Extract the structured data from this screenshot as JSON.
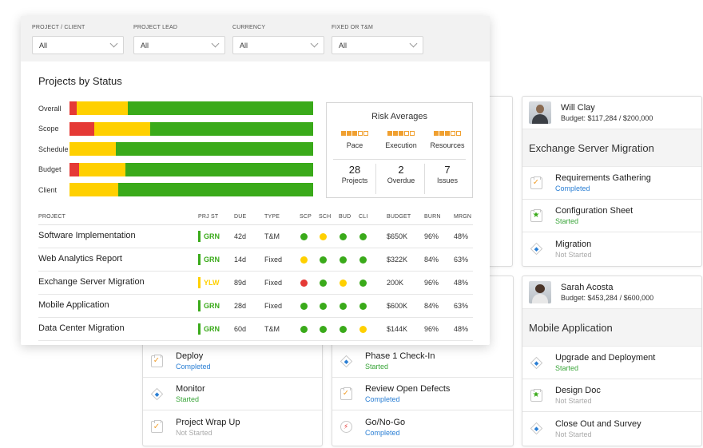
{
  "colors": {
    "red": "#e53935",
    "yellow": "#ffd000",
    "green": "#3aaa1a",
    "risk_orange": "#f0a030",
    "completed_blue": "#2b7fd4"
  },
  "filters": [
    {
      "label": "PROJECT / CLIENT",
      "value": "All"
    },
    {
      "label": "PROJECT LEAD",
      "value": "All"
    },
    {
      "label": "CURRENCY",
      "value": "All"
    },
    {
      "label": "FIXED OR T&M",
      "value": "All"
    }
  ],
  "status_chart": {
    "title": "Projects by Status",
    "rows": [
      {
        "label": "Overall",
        "red": 3,
        "yellow": 21,
        "green": 76
      },
      {
        "label": "Scope",
        "red": 10,
        "yellow": 23,
        "green": 67
      },
      {
        "label": "Schedule",
        "red": 0,
        "yellow": 19,
        "green": 81
      },
      {
        "label": "Budget",
        "red": 4,
        "yellow": 19,
        "green": 77
      },
      {
        "label": "Client",
        "red": 0,
        "yellow": 20,
        "green": 80
      }
    ]
  },
  "risk": {
    "title": "Risk Averages",
    "metrics": [
      {
        "label": "Pace",
        "filled": 3,
        "total": 5
      },
      {
        "label": "Execution",
        "filled": 3,
        "total": 5
      },
      {
        "label": "Resources",
        "filled": 3,
        "total": 5
      }
    ],
    "stats": [
      {
        "value": "28",
        "label": "Projects"
      },
      {
        "value": "2",
        "label": "Overdue"
      },
      {
        "value": "7",
        "label": "Issues"
      }
    ]
  },
  "table": {
    "headers": [
      "PROJECT",
      "PRJ ST",
      "DUE",
      "TYPE",
      "SCP",
      "SCH",
      "BUD",
      "CLI",
      "BUDGET",
      "BURN",
      "MRGN"
    ],
    "rows": [
      {
        "project": "Software Implementation",
        "status": "GRN",
        "due": "42d",
        "type": "T&M",
        "scp": "green",
        "sch": "yellow",
        "bud": "green",
        "cli": "green",
        "budget": "$650K",
        "burn": "96%",
        "margin": "48%"
      },
      {
        "project": "Web Analytics Report",
        "status": "GRN",
        "due": "14d",
        "type": "Fixed",
        "scp": "yellow",
        "sch": "green",
        "bud": "green",
        "cli": "green",
        "budget": "$322K",
        "burn": "84%",
        "margin": "63%"
      },
      {
        "project": "Exchange Server Migration",
        "status": "YLW",
        "due": "89d",
        "type": "Fixed",
        "scp": "red",
        "sch": "green",
        "bud": "yellow",
        "cli": "green",
        "budget": "200K",
        "burn": "96%",
        "margin": "48%"
      },
      {
        "project": "Mobile Application",
        "status": "GRN",
        "due": "28d",
        "type": "Fixed",
        "scp": "green",
        "sch": "green",
        "bud": "green",
        "cli": "green",
        "budget": "$600K",
        "burn": "84%",
        "margin": "63%"
      },
      {
        "project": "Data Center Migration",
        "status": "GRN",
        "due": "60d",
        "type": "T&M",
        "scp": "green",
        "sch": "green",
        "bud": "green",
        "cli": "yellow",
        "budget": "$144K",
        "burn": "96%",
        "margin": "48%"
      }
    ]
  },
  "cards": {
    "exchange": {
      "person": "Will Clay",
      "budget": "Budget: $117,284 / $200,000",
      "title": "Exchange Server Migration",
      "tasks": [
        {
          "name": "Requirements Gathering",
          "status": "Completed"
        },
        {
          "name": "Configuration Sheet",
          "status": "Started"
        },
        {
          "name": "Migration",
          "status": "Not Started"
        }
      ]
    },
    "mobile": {
      "person": "Sarah Acosta",
      "budget": "Budget: $453,284 / $600,000",
      "title": "Mobile Application",
      "tasks": [
        {
          "name": "Upgrade and Deployment",
          "status": "Started"
        },
        {
          "name": "Design Doc",
          "status": "Not Started"
        },
        {
          "name": "Close Out and Survey",
          "status": "Not Started"
        }
      ]
    },
    "left": {
      "tasks": [
        {
          "name": "Deploy",
          "status": "Completed"
        },
        {
          "name": "Monitor",
          "status": "Started"
        },
        {
          "name": "Project Wrap Up",
          "status": "Not Started"
        }
      ]
    },
    "middle": {
      "tasks": [
        {
          "name": "Phase 1 Check-In",
          "status": "Started"
        },
        {
          "name": "Review Open Defects",
          "status": "Completed"
        },
        {
          "name": "Go/No-Go",
          "status": "Completed"
        }
      ]
    }
  }
}
